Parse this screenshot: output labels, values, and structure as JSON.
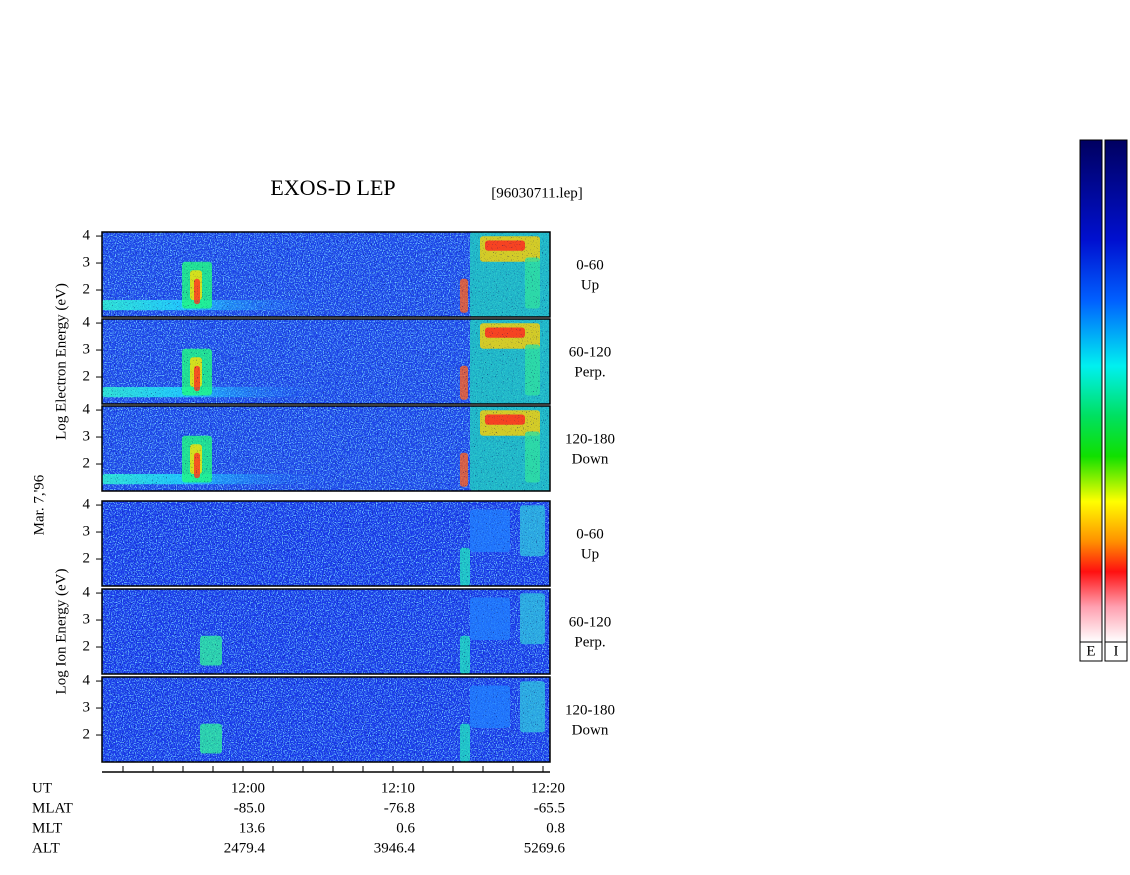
{
  "title": "EXOS-D LEP",
  "file": "[96030711.lep]",
  "date_label": "Mar. 7,'96",
  "yticks": [
    2,
    3,
    4
  ],
  "ylim": [
    1,
    4.15
  ],
  "groups": [
    {
      "label": "Log Electron Energy (eV)",
      "panels": [
        {
          "range": "0-60",
          "direction": "Up"
        },
        {
          "range": "60-120",
          "direction": "Perp."
        },
        {
          "range": "120-180",
          "direction": "Down"
        }
      ]
    },
    {
      "label": "Log Ion Energy (eV)",
      "panels": [
        {
          "range": "0-60",
          "direction": "Up"
        },
        {
          "range": "60-120",
          "direction": "Perp."
        },
        {
          "range": "120-180",
          "direction": "Down"
        }
      ]
    }
  ],
  "ephemeris": [
    {
      "label": "UT",
      "values": [
        "12:00",
        "12:10",
        "12:20"
      ]
    },
    {
      "label": "MLAT",
      "values": [
        "-85.0",
        "-76.8",
        "-65.5"
      ]
    },
    {
      "label": "MLT",
      "values": [
        "13.6",
        "0.6",
        "0.8"
      ]
    },
    {
      "label": "ALT",
      "values": [
        "2479.4",
        "3946.4",
        "5269.6"
      ]
    }
  ],
  "colorbars": [
    "E",
    "I"
  ]
}
